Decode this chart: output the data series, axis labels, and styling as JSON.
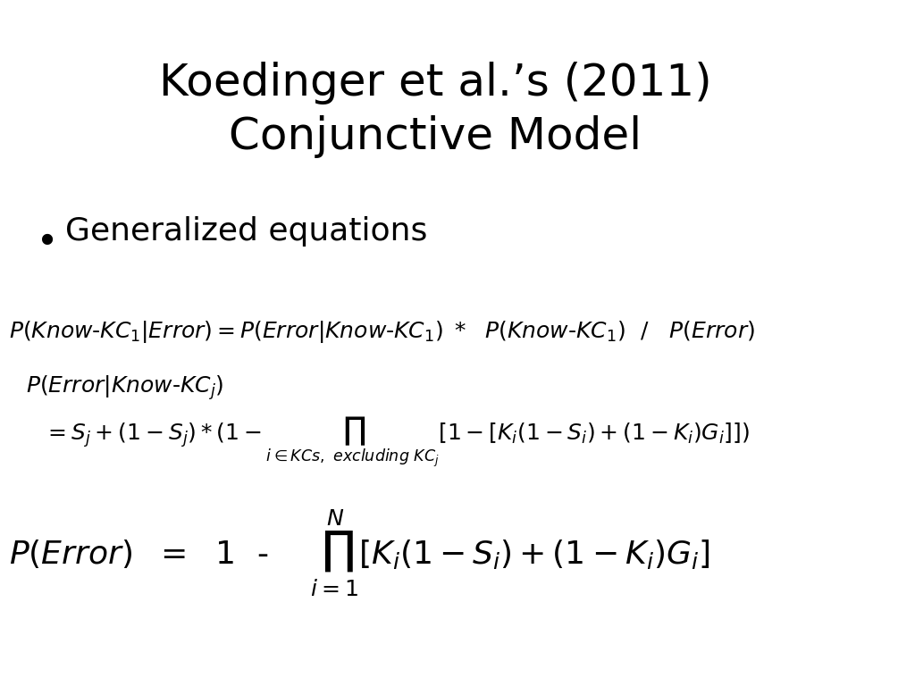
{
  "title_line1": "Koedinger et al.’s (2011)",
  "title_line2": "Conjunctive Model",
  "bullet": "Generalized equations",
  "eq1": "P(Know\\text{-}KC_1|Error) = P(Error|Know\\text{-}KC_1) \\ast\\ \\ P(Know\\text{-}KC_1)\\ \\ /\\ \\ \\ P(Error)",
  "eq2a": "P(Error|Know\\text{-}KC_j)",
  "eq2b": "= S_j + (1 - S_j) \\ast (1 - \\prod_{i \\in KCs,\\, excluding\\ KC_j}[1 - [K_i(1-S_i)+(1-K_i)G_i]])",
  "eq3": "P(Error)\\ \\ = \\ \\ 1 \\ \\ \\text{-} \\ \\ \\ \\ \\prod_{i=1}^{N}[K_i(1-S_i)+(1-K_i)G_i]",
  "background_color": "#ffffff",
  "title_fontsize": 36,
  "bullet_fontsize": 26,
  "eq_fontsize": 18,
  "eq3_fontsize": 26
}
